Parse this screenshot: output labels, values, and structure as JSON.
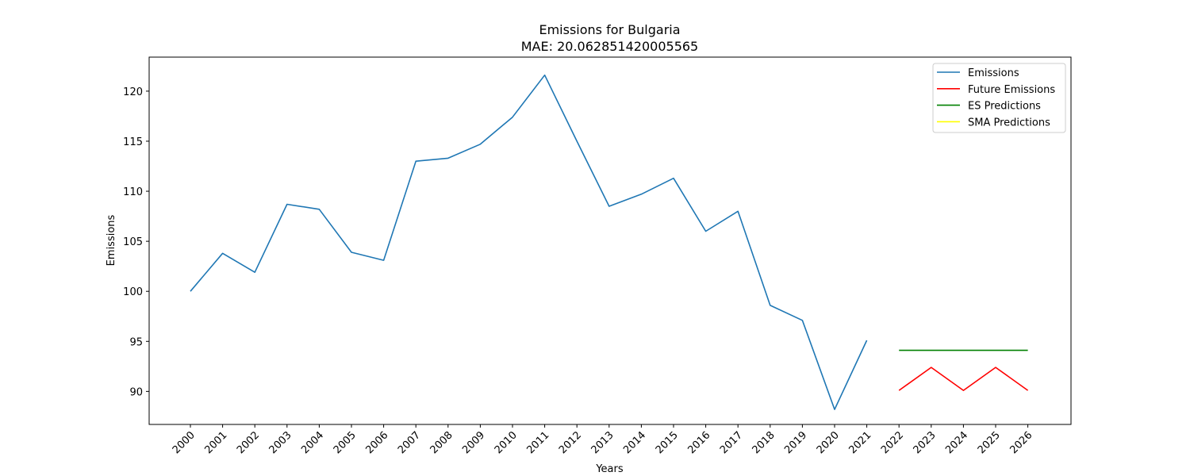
{
  "chart_data": {
    "type": "line",
    "title": "Emissions for Bulgaria",
    "subtitle": "MAE: 20.062851420005565",
    "xlabel": "Years",
    "ylabel": "Emissions",
    "categories": [
      "2000",
      "2001",
      "2002",
      "2003",
      "2004",
      "2005",
      "2006",
      "2007",
      "2008",
      "2009",
      "2010",
      "2011",
      "2012",
      "2013",
      "2014",
      "2015",
      "2016",
      "2017",
      "2018",
      "2019",
      "2020",
      "2021",
      "2022",
      "2023",
      "2024",
      "2025",
      "2026"
    ],
    "y_ticks": [
      90,
      95,
      100,
      105,
      110,
      115,
      120
    ],
    "ylim": [
      86.7,
      123.4
    ],
    "grid": false,
    "legend_position": "top-right",
    "series": [
      {
        "name": "Emissions",
        "color": "#1f77b4",
        "x": [
          "2000",
          "2001",
          "2002",
          "2003",
          "2004",
          "2005",
          "2006",
          "2007",
          "2008",
          "2009",
          "2010",
          "2011",
          "2012",
          "2013",
          "2014",
          "2015",
          "2016",
          "2017",
          "2018",
          "2019",
          "2020",
          "2021"
        ],
        "values": [
          100.0,
          103.8,
          101.9,
          108.7,
          108.2,
          103.9,
          103.1,
          113.0,
          113.3,
          114.7,
          117.4,
          121.6,
          115.0,
          108.5,
          109.7,
          111.3,
          106.0,
          108.0,
          98.6,
          97.1,
          88.2,
          95.1
        ]
      },
      {
        "name": "Future Emissions",
        "color": "#ff0000",
        "x": [
          "2022",
          "2023",
          "2024",
          "2025",
          "2026"
        ],
        "values": [
          90.1,
          92.4,
          90.1,
          92.4,
          90.1
        ]
      },
      {
        "name": "ES Predictions",
        "color": "#008000",
        "x": [
          "2022",
          "2023",
          "2024",
          "2025",
          "2026"
        ],
        "values": [
          94.1,
          94.1,
          94.1,
          94.1,
          94.1
        ]
      },
      {
        "name": "SMA Predictions",
        "color": "#ffff00",
        "x": [],
        "values": []
      }
    ]
  }
}
